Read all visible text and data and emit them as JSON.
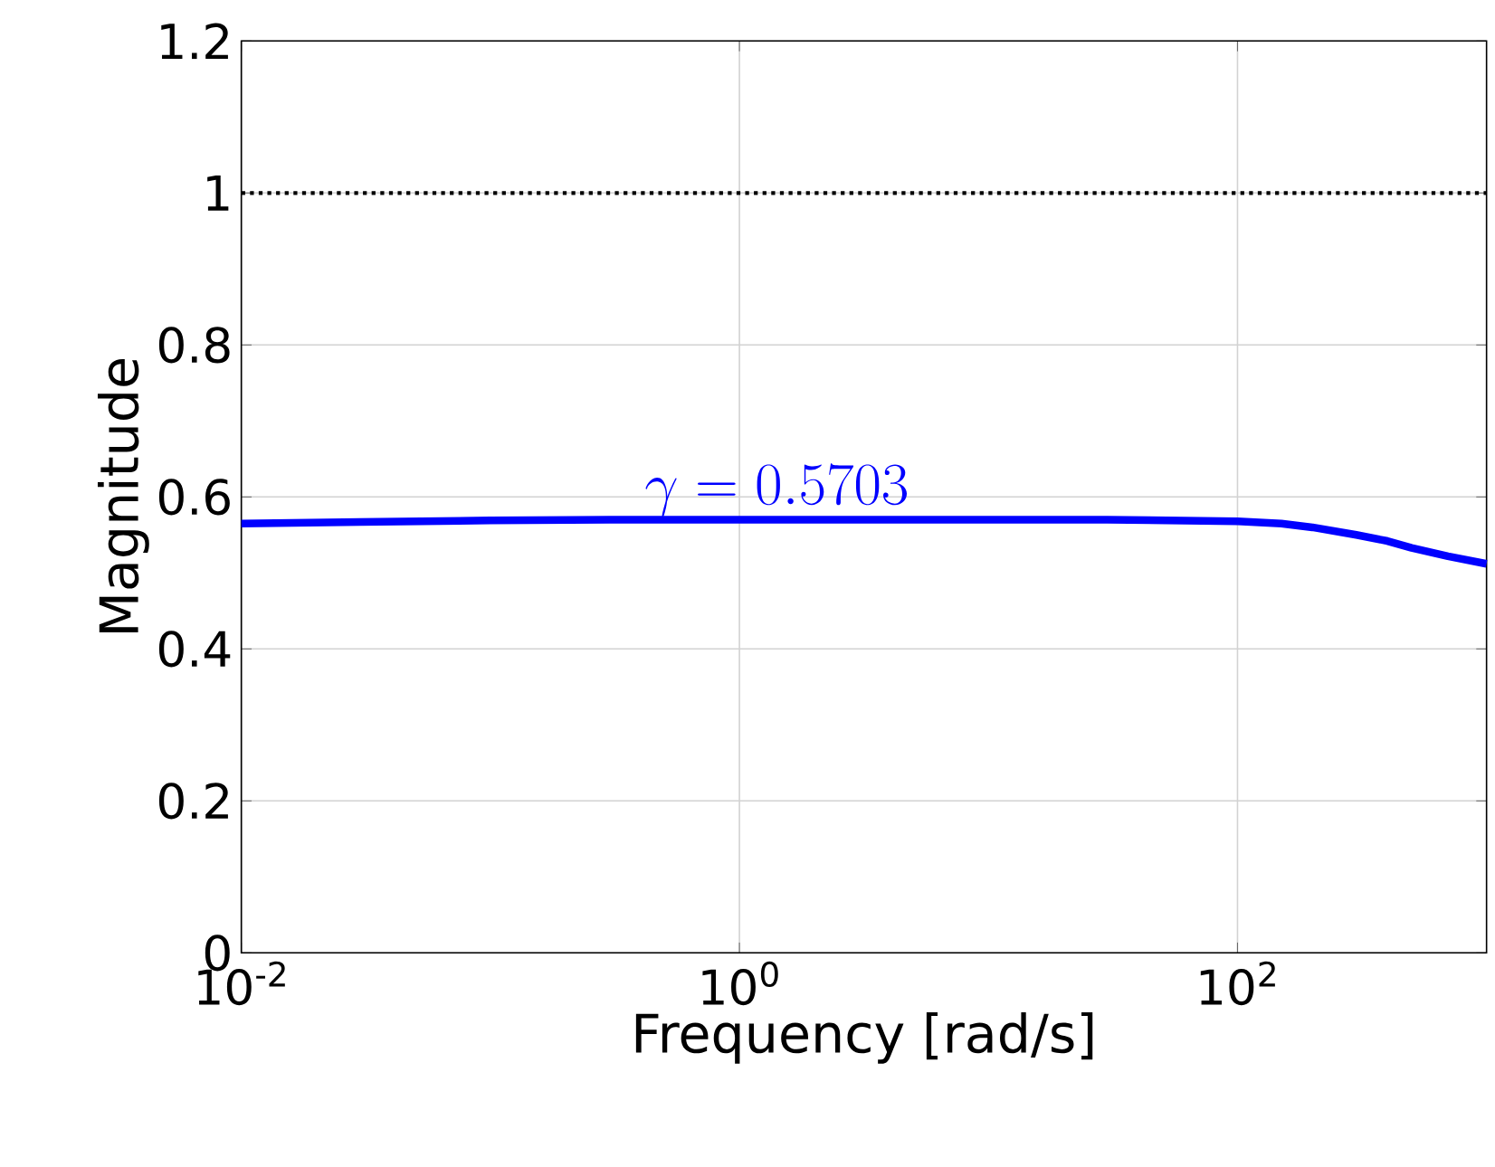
{
  "chart_data": {
    "type": "line",
    "xlabel": "Frequency [rad/s]",
    "ylabel": "Magnitude",
    "annotations": [
      "\\gamma = 0.5703"
    ],
    "series": [
      {
        "color": "#0000ff",
        "x": [
          0.01,
          0.03,
          0.1,
          0.3,
          1,
          3,
          10,
          30,
          100,
          150,
          200,
          300,
          400,
          500,
          700,
          1000
        ],
        "values": [
          0.565,
          0.567,
          0.569,
          0.57,
          0.57,
          0.57,
          0.57,
          0.57,
          0.568,
          0.565,
          0.56,
          0.55,
          0.542,
          0.533,
          0.522,
          0.512
        ]
      }
    ],
    "xlim": [
      0.01,
      1000
    ],
    "ylim": [
      0,
      1.2
    ],
    "xticks": [
      {
        "value": 0.01,
        "label": "10$^{-2}$"
      },
      {
        "value": 1,
        "label": "10$^{0}$"
      },
      {
        "value": 100,
        "label": "10$^{2}$"
      }
    ],
    "yticks": [
      0,
      0.2,
      0.4,
      0.6,
      0.8,
      1,
      1.2
    ],
    "log": "x",
    "grid": true,
    "line_style": "solid",
    "marker": "none",
    "ref_lines": [
      {
        "axis": "y",
        "value": 1,
        "color": "#000000",
        "line_style": "dotted"
      }
    ]
  }
}
